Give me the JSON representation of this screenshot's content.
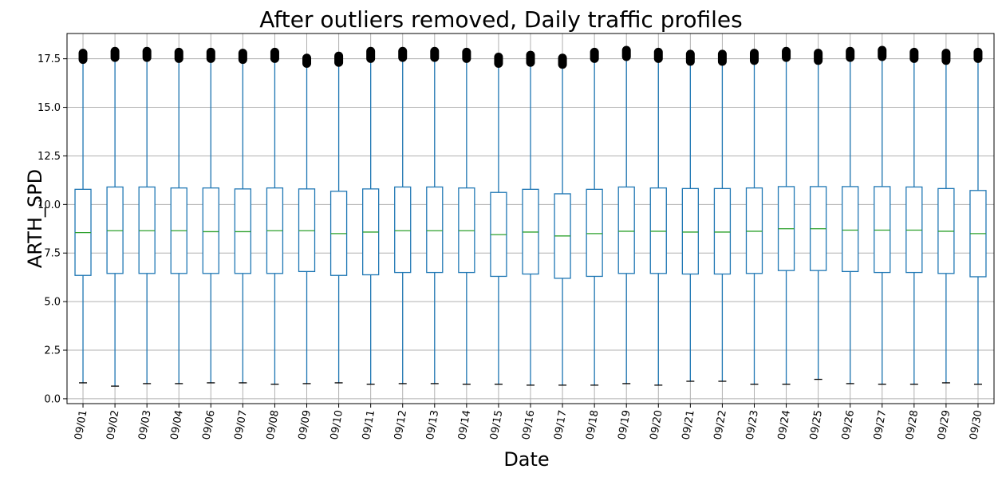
{
  "chart_data": {
    "type": "box",
    "title": "After outliers removed, Daily traffic profiles",
    "xlabel": "Date",
    "ylabel": "ARTH_SPD",
    "ylim": [
      -0.25,
      18.8
    ],
    "yticks": [
      "0.0",
      "2.5",
      "5.0",
      "7.5",
      "10.0",
      "12.5",
      "15.0",
      "17.5"
    ],
    "grid": true,
    "colors": {
      "box": "#1f77b4",
      "median": "#2ca02c",
      "outlier": "#000000",
      "grid": "#b0b0b0"
    },
    "categories": [
      "09/01",
      "09/02",
      "09/03",
      "09/04",
      "09/06",
      "09/07",
      "09/08",
      "09/09",
      "09/10",
      "09/11",
      "09/12",
      "09/13",
      "09/14",
      "09/15",
      "09/16",
      "09/17",
      "09/18",
      "09/19",
      "09/20",
      "09/21",
      "09/22",
      "09/23",
      "09/24",
      "09/25",
      "09/26",
      "09/27",
      "09/28",
      "09/29",
      "09/30"
    ],
    "boxes": [
      {
        "whislo": 0.82,
        "q1": 6.35,
        "med": 8.55,
        "q3": 10.78,
        "whishi": 17.4,
        "flier_range": [
          17.4,
          17.85
        ]
      },
      {
        "whislo": 0.65,
        "q1": 6.45,
        "med": 8.65,
        "q3": 10.9,
        "whishi": 17.5,
        "flier_range": [
          17.5,
          17.95
        ]
      },
      {
        "whislo": 0.78,
        "q1": 6.45,
        "med": 8.65,
        "q3": 10.9,
        "whishi": 17.5,
        "flier_range": [
          17.5,
          17.95
        ]
      },
      {
        "whislo": 0.78,
        "q1": 6.45,
        "med": 8.65,
        "q3": 10.85,
        "whishi": 17.45,
        "flier_range": [
          17.45,
          17.9
        ]
      },
      {
        "whislo": 0.82,
        "q1": 6.45,
        "med": 8.6,
        "q3": 10.85,
        "whishi": 17.45,
        "flier_range": [
          17.45,
          17.9
        ]
      },
      {
        "whislo": 0.82,
        "q1": 6.45,
        "med": 8.6,
        "q3": 10.8,
        "whishi": 17.4,
        "flier_range": [
          17.4,
          17.85
        ]
      },
      {
        "whislo": 0.75,
        "q1": 6.45,
        "med": 8.65,
        "q3": 10.85,
        "whishi": 17.45,
        "flier_range": [
          17.45,
          17.9
        ]
      },
      {
        "whislo": 0.78,
        "q1": 6.55,
        "med": 8.65,
        "q3": 10.8,
        "whishi": 17.2,
        "flier_range": [
          17.2,
          17.6
        ]
      },
      {
        "whislo": 0.82,
        "q1": 6.35,
        "med": 8.5,
        "q3": 10.68,
        "whishi": 17.25,
        "flier_range": [
          17.25,
          17.7
        ]
      },
      {
        "whislo": 0.75,
        "q1": 6.38,
        "med": 8.58,
        "q3": 10.8,
        "whishi": 17.45,
        "flier_range": [
          17.45,
          17.95
        ]
      },
      {
        "whislo": 0.78,
        "q1": 6.5,
        "med": 8.65,
        "q3": 10.9,
        "whishi": 17.5,
        "flier_range": [
          17.5,
          17.95
        ]
      },
      {
        "whislo": 0.78,
        "q1": 6.5,
        "med": 8.65,
        "q3": 10.9,
        "whishi": 17.5,
        "flier_range": [
          17.5,
          17.95
        ]
      },
      {
        "whislo": 0.75,
        "q1": 6.5,
        "med": 8.65,
        "q3": 10.85,
        "whishi": 17.45,
        "flier_range": [
          17.45,
          17.9
        ]
      },
      {
        "whislo": 0.75,
        "q1": 6.3,
        "med": 8.45,
        "q3": 10.62,
        "whishi": 17.2,
        "flier_range": [
          17.2,
          17.65
        ]
      },
      {
        "whislo": 0.7,
        "q1": 6.42,
        "med": 8.58,
        "q3": 10.78,
        "whishi": 17.25,
        "flier_range": [
          17.25,
          17.75
        ]
      },
      {
        "whislo": 0.7,
        "q1": 6.2,
        "med": 8.38,
        "q3": 10.55,
        "whishi": 17.15,
        "flier_range": [
          17.15,
          17.6
        ]
      },
      {
        "whislo": 0.7,
        "q1": 6.3,
        "med": 8.5,
        "q3": 10.78,
        "whishi": 17.45,
        "flier_range": [
          17.45,
          17.9
        ]
      },
      {
        "whislo": 0.78,
        "q1": 6.45,
        "med": 8.62,
        "q3": 10.9,
        "whishi": 17.55,
        "flier_range": [
          17.55,
          18.0
        ]
      },
      {
        "whislo": 0.7,
        "q1": 6.45,
        "med": 8.62,
        "q3": 10.85,
        "whishi": 17.45,
        "flier_range": [
          17.45,
          17.9
        ]
      },
      {
        "whislo": 0.9,
        "q1": 6.42,
        "med": 8.58,
        "q3": 10.82,
        "whishi": 17.3,
        "flier_range": [
          17.3,
          17.8
        ]
      },
      {
        "whislo": 0.9,
        "q1": 6.42,
        "med": 8.58,
        "q3": 10.82,
        "whishi": 17.3,
        "flier_range": [
          17.3,
          17.8
        ]
      },
      {
        "whislo": 0.75,
        "q1": 6.45,
        "med": 8.62,
        "q3": 10.85,
        "whishi": 17.35,
        "flier_range": [
          17.35,
          17.85
        ]
      },
      {
        "whislo": 0.75,
        "q1": 6.6,
        "med": 8.75,
        "q3": 10.92,
        "whishi": 17.5,
        "flier_range": [
          17.5,
          17.95
        ]
      },
      {
        "whislo": 1.0,
        "q1": 6.6,
        "med": 8.75,
        "q3": 10.92,
        "whishi": 17.35,
        "flier_range": [
          17.35,
          17.85
        ]
      },
      {
        "whislo": 0.78,
        "q1": 6.55,
        "med": 8.68,
        "q3": 10.92,
        "whishi": 17.5,
        "flier_range": [
          17.5,
          17.95
        ]
      },
      {
        "whislo": 0.75,
        "q1": 6.5,
        "med": 8.68,
        "q3": 10.92,
        "whishi": 17.55,
        "flier_range": [
          17.55,
          18.0
        ]
      },
      {
        "whislo": 0.75,
        "q1": 6.5,
        "med": 8.68,
        "q3": 10.9,
        "whishi": 17.45,
        "flier_range": [
          17.45,
          17.9
        ]
      },
      {
        "whislo": 0.82,
        "q1": 6.45,
        "med": 8.62,
        "q3": 10.82,
        "whishi": 17.35,
        "flier_range": [
          17.35,
          17.85
        ]
      },
      {
        "whislo": 0.75,
        "q1": 6.28,
        "med": 8.5,
        "q3": 10.72,
        "whishi": 17.45,
        "flier_range": [
          17.45,
          17.9
        ]
      }
    ]
  }
}
